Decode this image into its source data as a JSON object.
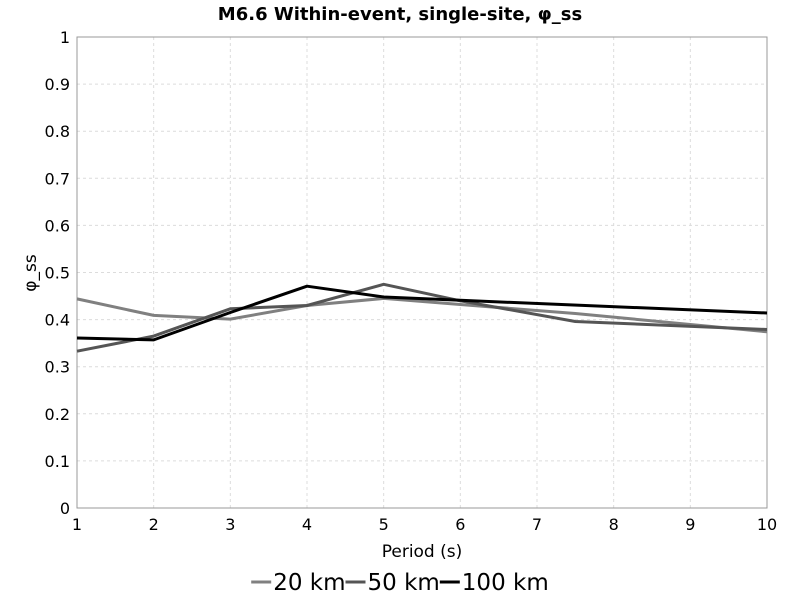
{
  "chart_data": {
    "type": "line",
    "title": "M6.6 Within-event, single-site, φ_ss",
    "xlabel": "Period (s)",
    "ylabel": "φ_ss",
    "xlim": [
      1,
      10
    ],
    "ylim": [
      0,
      1
    ],
    "xticks": [
      "1",
      "2",
      "3",
      "4",
      "5",
      "6",
      "7",
      "8",
      "9",
      "10"
    ],
    "yticks": [
      "0",
      "0.1",
      "0.2",
      "0.3",
      "0.4",
      "0.5",
      "0.6",
      "0.7",
      "0.8",
      "0.9",
      "1"
    ],
    "grid": true,
    "legend_position": "bottom",
    "series": [
      {
        "name": "20 km",
        "color": "#808080",
        "x": [
          1,
          2,
          3,
          4,
          5,
          6,
          7.5,
          10
        ],
        "y": [
          0.444,
          0.409,
          0.401,
          0.43,
          0.445,
          0.432,
          0.413,
          0.374
        ]
      },
      {
        "name": "50 km",
        "color": "#555555",
        "x": [
          1,
          2,
          3,
          4,
          5,
          6,
          7.5,
          10
        ],
        "y": [
          0.333,
          0.365,
          0.423,
          0.43,
          0.475,
          0.44,
          0.396,
          0.379
        ]
      },
      {
        "name": "100 km",
        "color": "#000000",
        "x": [
          1,
          2,
          3,
          4,
          5,
          6,
          10
        ],
        "y": [
          0.361,
          0.357,
          0.415,
          0.471,
          0.448,
          0.441,
          0.414
        ]
      }
    ]
  }
}
